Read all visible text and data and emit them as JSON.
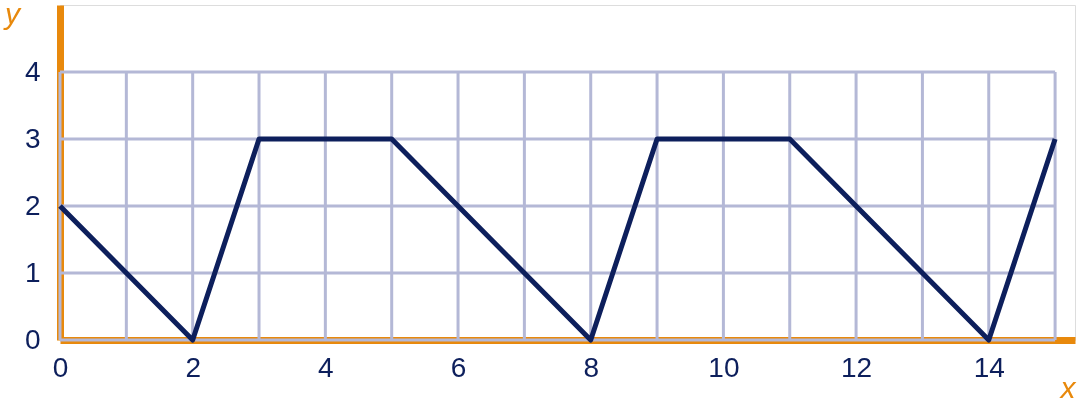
{
  "chart_data": {
    "type": "line",
    "xlabel": "x",
    "ylabel": "y",
    "x": [
      0,
      2,
      3,
      5,
      8,
      9,
      11,
      14,
      15
    ],
    "series": [
      {
        "color": "#0d1f5c",
        "values": [
          2,
          0,
          3,
          3,
          0,
          3,
          3,
          0,
          3
        ]
      }
    ],
    "xlim": [
      0,
      15.3
    ],
    "ylim": [
      0,
      5
    ],
    "xticks": [
      0,
      {
        "value": 1,
        "label": null
      },
      2,
      {
        "value": 3,
        "label": null
      },
      4,
      {
        "value": 5,
        "label": null
      },
      6,
      {
        "value": 7,
        "label": null
      },
      8,
      {
        "value": 9,
        "label": null
      },
      10,
      {
        "value": 11,
        "label": null
      },
      12,
      {
        "value": 13,
        "label": null
      },
      14,
      {
        "value": 15,
        "label": null
      }
    ],
    "yticks": [
      0,
      1,
      2,
      3,
      4
    ],
    "grid": true,
    "marker": "none",
    "line_style": "solid"
  }
}
